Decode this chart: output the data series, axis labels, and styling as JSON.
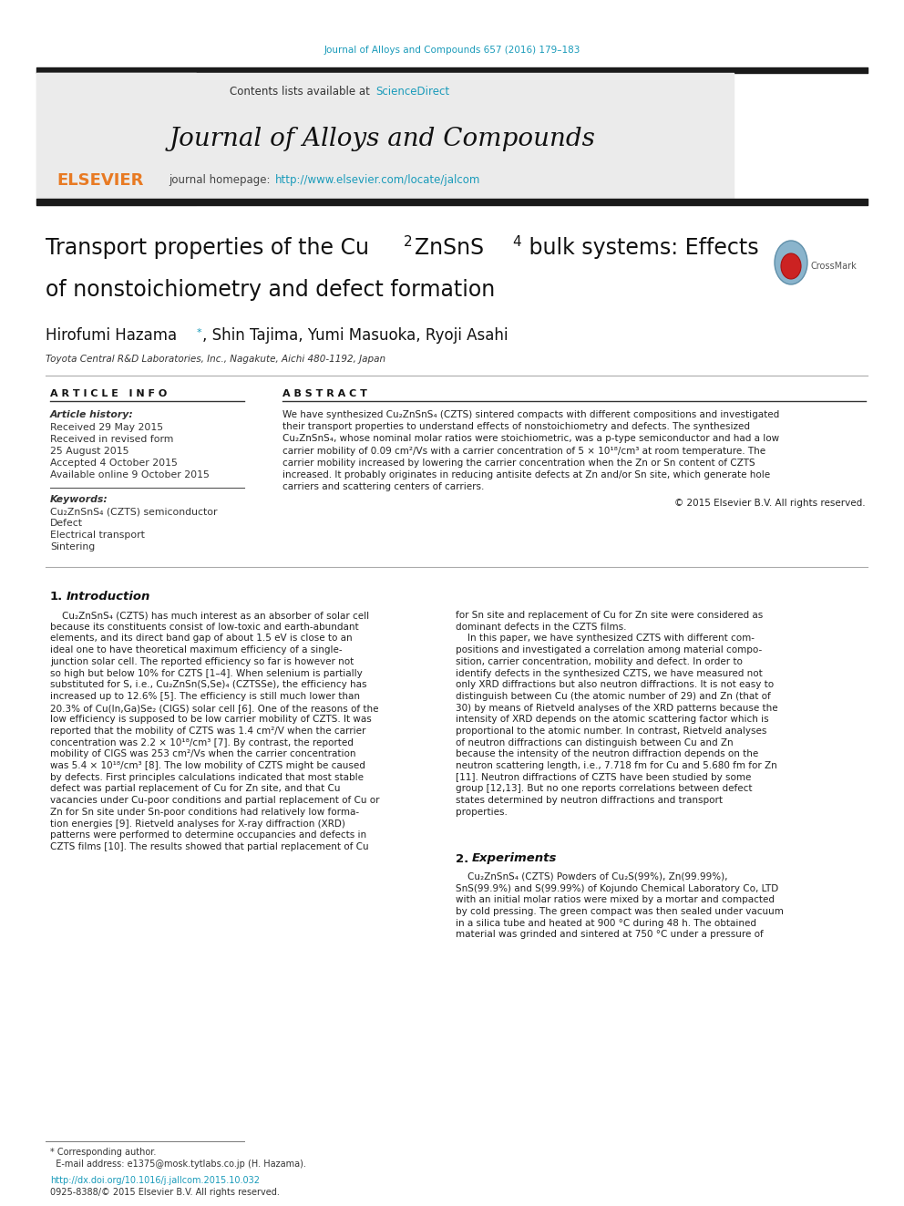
{
  "journal_ref": "Journal of Alloys and Compounds 657 (2016) 179–183",
  "journal_ref_color": "#1a9bba",
  "contents_text": "Contents lists available at ",
  "sciencedirect_text": "ScienceDirect",
  "sciencedirect_color": "#1a9bba",
  "journal_title": "Journal of Alloys and Compounds",
  "journal_homepage_text": "journal homepage: ",
  "journal_url": "http://www.elsevier.com/locate/jalcom",
  "journal_url_color": "#1a9bba",
  "paper_title_line1": "Transport properties of the Cu",
  "paper_title_sub1": "2",
  "paper_title_mid": "ZnSnS",
  "paper_title_sub2": "4",
  "paper_title_end": " bulk systems: Effects",
  "paper_title_line2": "of nonstoichiometry and defect formation",
  "authors_part1": "Hirofumi Hazama",
  "authors_star": "*",
  "authors_part2": ", Shin Tajima, Yumi Masuoka, Ryoji Asahi",
  "affiliation": "Toyota Central R&D Laboratories, Inc., Nagakute, Aichi 480-1192, Japan",
  "article_info_header": "A R T I C L E   I N F O",
  "abstract_header": "A B S T R A C T",
  "article_history_label": "Article history:",
  "received_1": "Received 29 May 2015",
  "received_revised": "Received in revised form",
  "revised_date": "25 August 2015",
  "accepted": "Accepted 4 October 2015",
  "available": "Available online 9 October 2015",
  "keywords_label": "Keywords:",
  "keyword1": "Cu₂ZnSnS₄ (CZTS) semiconductor",
  "keyword2": "Defect",
  "keyword3": "Electrical transport",
  "keyword4": "Sintering",
  "copyright": "© 2015 Elsevier B.V. All rights reserved.",
  "footer_doi": "http://dx.doi.org/10.1016/j.jallcom.2015.10.032",
  "footer_issn": "0925-8388/© 2015 Elsevier B.V. All rights reserved.",
  "bg_color": "#ffffff",
  "header_bg": "#e8e8e8",
  "black_bar_color": "#1a1a1a",
  "text_color": "#000000",
  "abstract_lines": [
    "We have synthesized Cu₂ZnSnS₄ (CZTS) sintered compacts with different compositions and investigated",
    "their transport properties to understand effects of nonstoichiometry and defects. The synthesized",
    "Cu₂ZnSnS₄, whose nominal molar ratios were stoichiometric, was a p-type semiconductor and had a low",
    "carrier mobility of 0.09 cm²/Vs with a carrier concentration of 5 × 10¹⁸/cm³ at room temperature. The",
    "carrier mobility increased by lowering the carrier concentration when the Zn or Sn content of CZTS",
    "increased. It probably originates in reducing antisite defects at Zn and/or Sn site, which generate hole",
    "carriers and scattering centers of carriers."
  ],
  "intro_col1_lines": [
    "    Cu₂ZnSnS₄ (CZTS) has much interest as an absorber of solar cell",
    "because its constituents consist of low-toxic and earth-abundant",
    "elements, and its direct band gap of about 1.5 eV is close to an",
    "ideal one to have theoretical maximum efficiency of a single-",
    "junction solar cell. The reported efficiency so far is however not",
    "so high but below 10% for CZTS [1–4]. When selenium is partially",
    "substituted for S, i.e., Cu₂ZnSn(S,Se)₄ (CZTSSe), the efficiency has",
    "increased up to 12.6% [5]. The efficiency is still much lower than",
    "20.3% of Cu(In,Ga)Se₂ (CIGS) solar cell [6]. One of the reasons of the",
    "low efficiency is supposed to be low carrier mobility of CZTS. It was",
    "reported that the mobility of CZTS was 1.4 cm²/V when the carrier",
    "concentration was 2.2 × 10¹⁸/cm³ [7]. By contrast, the reported",
    "mobility of CIGS was 253 cm²/Vs when the carrier concentration",
    "was 5.4 × 10¹⁸/cm³ [8]. The low mobility of CZTS might be caused",
    "by defects. First principles calculations indicated that most stable",
    "defect was partial replacement of Cu for Zn site, and that Cu",
    "vacancies under Cu-poor conditions and partial replacement of Cu or",
    "Zn for Sn site under Sn-poor conditions had relatively low forma-",
    "tion energies [9]. Rietveld analyses for X-ray diffraction (XRD)",
    "patterns were performed to determine occupancies and defects in",
    "CZTS films [10]. The results showed that partial replacement of Cu"
  ],
  "intro_col2_lines": [
    "for Sn site and replacement of Cu for Zn site were considered as",
    "dominant defects in the CZTS films.",
    "    In this paper, we have synthesized CZTS with different com-",
    "positions and investigated a correlation among material compo-",
    "sition, carrier concentration, mobility and defect. In order to",
    "identify defects in the synthesized CZTS, we have measured not",
    "only XRD diffractions but also neutron diffractions. It is not easy to",
    "distinguish between Cu (the atomic number of 29) and Zn (that of",
    "30) by means of Rietveld analyses of the XRD patterns because the",
    "intensity of XRD depends on the atomic scattering factor which is",
    "proportional to the atomic number. In contrast, Rietveld analyses",
    "of neutron diffractions can distinguish between Cu and Zn",
    "because the intensity of the neutron diffraction depends on the",
    "neutron scattering length, i.e., 7.718 fm for Cu and 5.680 fm for Zn",
    "[11]. Neutron diffractions of CZTS have been studied by some",
    "group [12,13]. But no one reports correlations between defect",
    "states determined by neutron diffractions and transport",
    "properties."
  ],
  "sec2_col1_lines": [
    "    Cu₂ZnSnS₄ (CZTS) Powders of Cu₂S(99%), Zn(99.99%),",
    "SnS(99.9%) and S(99.99%) of Kojundo Chemical Laboratory Co, LTD",
    "with an initial molar ratios were mixed by a mortar and compacted",
    "by cold pressing. The green compact was then sealed under vacuum",
    "in a silica tube and heated at 900 °C during 48 h. The obtained",
    "material was grinded and sintered at 750 °C under a pressure of"
  ]
}
